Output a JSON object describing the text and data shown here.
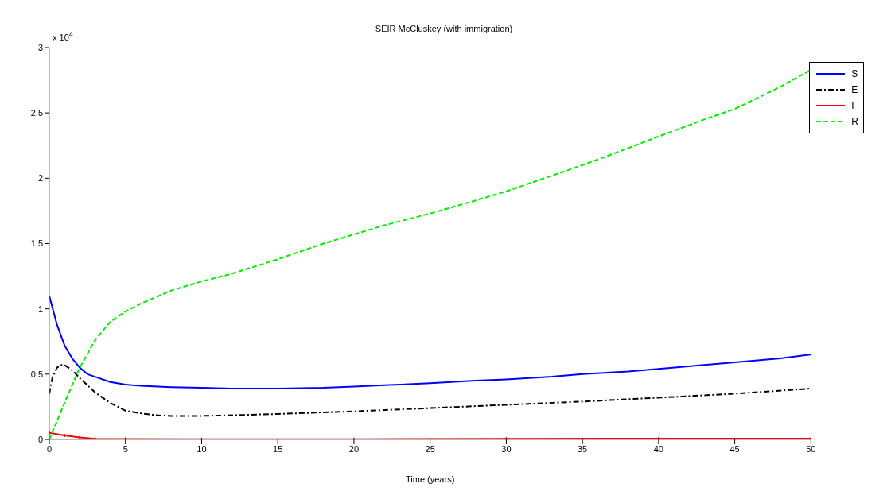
{
  "chart_data": {
    "type": "line",
    "title": "SEIR McCluskey (with immigration)",
    "xlabel": "Time (years)",
    "annotations": [
      "x 10$^{4}$"
    ],
    "xlim": [
      0,
      50
    ],
    "xticks": [
      0,
      5,
      10,
      15,
      20,
      25,
      30,
      35,
      40,
      45,
      50
    ],
    "ylim": [
      0,
      3
    ],
    "yticks": [
      0,
      0.5,
      1,
      1.5,
      2,
      2.5,
      3
    ],
    "grid": false,
    "legend": "top right",
    "series": [
      {
        "name": "S",
        "color": "#0000ff",
        "line_style": "solid",
        "marker": "none",
        "x": [
          0,
          0.5,
          1,
          1.5,
          2,
          2.5,
          3,
          4,
          5,
          6,
          8,
          10,
          12,
          15,
          18,
          20,
          22,
          25,
          28,
          30,
          33,
          35,
          38,
          40,
          43,
          45,
          48,
          50
        ],
        "values": [
          1.1,
          0.88,
          0.72,
          0.62,
          0.55,
          0.5,
          0.48,
          0.44,
          0.42,
          0.41,
          0.4,
          0.395,
          0.39,
          0.39,
          0.395,
          0.405,
          0.415,
          0.43,
          0.45,
          0.46,
          0.48,
          0.5,
          0.52,
          0.54,
          0.57,
          0.59,
          0.62,
          0.65
        ]
      },
      {
        "name": "E",
        "color": "#000000",
        "line_style": "dashdot",
        "marker": "none",
        "x": [
          0,
          0.2,
          0.5,
          0.8,
          1,
          1.5,
          2,
          3,
          4,
          5,
          6,
          7,
          8,
          10,
          12,
          15,
          20,
          25,
          30,
          35,
          40,
          45,
          50
        ],
        "values": [
          0.35,
          0.47,
          0.55,
          0.57,
          0.57,
          0.53,
          0.47,
          0.36,
          0.28,
          0.22,
          0.2,
          0.185,
          0.18,
          0.18,
          0.185,
          0.195,
          0.215,
          0.24,
          0.265,
          0.29,
          0.32,
          0.35,
          0.39
        ]
      },
      {
        "name": "I",
        "color": "#ff0000",
        "line_style": "solid",
        "marker": "cross",
        "x": [
          0,
          1,
          2,
          3,
          5,
          10,
          20,
          30,
          40,
          50
        ],
        "values": [
          0.05,
          0.03,
          0.015,
          0.005,
          0.003,
          0.002,
          0.002,
          0.005,
          0.006,
          0.006
        ]
      },
      {
        "name": "R",
        "color": "#00ee00",
        "line_style": "dashed",
        "marker": "none",
        "x": [
          0,
          1,
          2,
          3,
          4,
          5,
          6,
          7,
          8,
          10,
          12,
          15,
          18,
          20,
          22,
          25,
          28,
          30,
          33,
          35,
          38,
          40,
          43,
          45,
          48,
          50
        ],
        "values": [
          0,
          0.28,
          0.55,
          0.76,
          0.9,
          0.98,
          1.04,
          1.09,
          1.14,
          1.21,
          1.27,
          1.38,
          1.5,
          1.57,
          1.64,
          1.73,
          1.83,
          1.9,
          2.02,
          2.1,
          2.23,
          2.32,
          2.45,
          2.53,
          2.7,
          2.83
        ]
      }
    ]
  }
}
